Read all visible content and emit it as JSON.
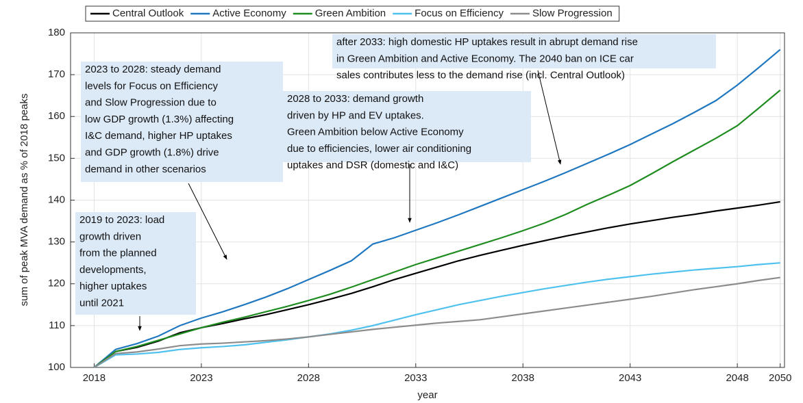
{
  "chart_data": {
    "type": "line",
    "xlabel": "year",
    "ylabel": "sum of peak MVA demand as % of 2018 peaks",
    "x": [
      2018,
      2019,
      2020,
      2021,
      2022,
      2023,
      2024,
      2025,
      2026,
      2027,
      2028,
      2029,
      2030,
      2031,
      2032,
      2033,
      2034,
      2035,
      2036,
      2037,
      2038,
      2039,
      2040,
      2041,
      2042,
      2043,
      2044,
      2045,
      2046,
      2047,
      2048,
      2049,
      2050
    ],
    "series": [
      {
        "name": "Central Outlook",
        "color": "#000000",
        "values": [
          100,
          103.8,
          104.8,
          106.3,
          108.3,
          109.5,
          110.5,
          111.6,
          112.6,
          113.8,
          115,
          116.3,
          117.7,
          119.3,
          121,
          122.5,
          124,
          125.5,
          126.8,
          128,
          129.2,
          130.3,
          131.4,
          132.4,
          133.4,
          134.3,
          135.1,
          135.9,
          136.6,
          137.4,
          138.1,
          138.8,
          139.6
        ]
      },
      {
        "name": "Active Economy",
        "color": "#1f77c0",
        "values": [
          100,
          104.3,
          105.7,
          107.5,
          110,
          111.8,
          113.3,
          115,
          116.8,
          118.8,
          121,
          123.2,
          125.5,
          129.5,
          131,
          132.8,
          134.6,
          136.5,
          138.5,
          140.5,
          142.5,
          144.5,
          146.6,
          148.8,
          151,
          153.3,
          155.8,
          158.3,
          161,
          163.8,
          167.5,
          171.7,
          176
        ]
      },
      {
        "name": "Green Ambition",
        "color": "#1f8c1f",
        "values": [
          100,
          103.8,
          105,
          106.5,
          108,
          109.5,
          110.8,
          112,
          113.3,
          114.6,
          116,
          117.5,
          119.2,
          121,
          122.8,
          124.6,
          126.2,
          127.8,
          129.4,
          131,
          132.7,
          134.5,
          136.6,
          139,
          141.2,
          143.5,
          146.3,
          149.2,
          152,
          154.8,
          157.8,
          162,
          166.3
        ]
      },
      {
        "name": "Focus on Efficiency",
        "color": "#4fc1ee",
        "values": [
          100,
          103,
          103.2,
          103.6,
          104.3,
          104.7,
          105,
          105.4,
          106,
          106.6,
          107.3,
          108,
          108.9,
          110,
          111.3,
          112.6,
          113.8,
          115,
          116,
          117,
          117.9,
          118.8,
          119.6,
          120.4,
          121.1,
          121.7,
          122.3,
          122.8,
          123.3,
          123.7,
          124.1,
          124.6,
          125
        ]
      },
      {
        "name": "Slow Progression",
        "color": "#8c8c8c",
        "values": [
          100,
          103.3,
          103.7,
          104.4,
          105.2,
          105.6,
          105.8,
          106.1,
          106.4,
          106.8,
          107.3,
          107.9,
          108.5,
          109.1,
          109.6,
          110.1,
          110.6,
          111,
          111.4,
          112.1,
          112.8,
          113.5,
          114.2,
          114.9,
          115.6,
          116.3,
          117,
          117.8,
          118.6,
          119.3,
          120,
          120.8,
          121.5
        ]
      }
    ],
    "xlim": [
      2016.9,
      2050.2
    ],
    "ylim": [
      100,
      180
    ],
    "xticks": [
      2018,
      2023,
      2028,
      2033,
      2038,
      2043,
      2048,
      2050
    ],
    "yticks": [
      100,
      110,
      120,
      130,
      140,
      150,
      160,
      170,
      180
    ],
    "grid": true,
    "legend": "top",
    "annotations": [
      {
        "lines": [
          "2019 to 2023: load",
          "growth driven",
          "from the planned",
          "developments,",
          "higher uptakes",
          "until 2021"
        ]
      },
      {
        "lines": [
          "2023 to 2028: steady demand",
          "levels for Focus on Efficiency",
          "and Slow Progression due to",
          "low GDP growth (1.3%) affecting",
          "I&C demand, higher HP uptakes",
          "and  GDP growth (1.8%) drive",
          "demand in other scenarios"
        ]
      },
      {
        "lines": [
          "2028 to 2033: demand growth",
          "driven by HP and EV uptakes.",
          "Green Ambition below Active Economy",
          "due to efficiencies, lower air conditioning",
          "uptakes and DSR (domestic and I&C)"
        ]
      },
      {
        "lines": [
          "after 2033: high domestic HP uptakes result in abrupt demand rise",
          "in Green Ambition and Active Economy. The 2040 ban on ICE car",
          "sales contributes less to the demand rise (incl. Central Outlook)"
        ]
      }
    ]
  }
}
